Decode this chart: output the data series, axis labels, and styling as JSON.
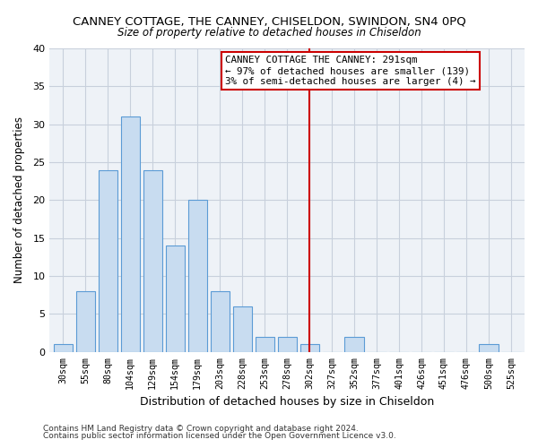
{
  "title": "CANNEY COTTAGE, THE CANNEY, CHISELDON, SWINDON, SN4 0PQ",
  "subtitle": "Size of property relative to detached houses in Chiseldon",
  "xlabel": "Distribution of detached houses by size in Chiseldon",
  "ylabel": "Number of detached properties",
  "bar_labels": [
    "30sqm",
    "55sqm",
    "80sqm",
    "104sqm",
    "129sqm",
    "154sqm",
    "179sqm",
    "203sqm",
    "228sqm",
    "253sqm",
    "278sqm",
    "302sqm",
    "327sqm",
    "352sqm",
    "377sqm",
    "401sqm",
    "426sqm",
    "451sqm",
    "476sqm",
    "500sqm",
    "525sqm"
  ],
  "bar_values": [
    1,
    8,
    24,
    31,
    24,
    14,
    20,
    8,
    6,
    2,
    2,
    1,
    0,
    2,
    0,
    0,
    0,
    0,
    0,
    1,
    0
  ],
  "bar_color": "#c8dcf0",
  "bar_edge_color": "#5b9bd5",
  "ylim": [
    0,
    40
  ],
  "yticks": [
    0,
    5,
    10,
    15,
    20,
    25,
    30,
    35,
    40
  ],
  "vline_x": 11.0,
  "vline_color": "#cc0000",
  "annotation_title": "CANNEY COTTAGE THE CANNEY: 291sqm",
  "annotation_line1": "← 97% of detached houses are smaller (139)",
  "annotation_line2": "3% of semi-detached houses are larger (4) →",
  "footer1": "Contains HM Land Registry data © Crown copyright and database right 2024.",
  "footer2": "Contains public sector information licensed under the Open Government Licence v3.0.",
  "bg_color": "#ffffff",
  "plot_bg_color": "#eef2f7",
  "grid_color": "#c8d0dc"
}
